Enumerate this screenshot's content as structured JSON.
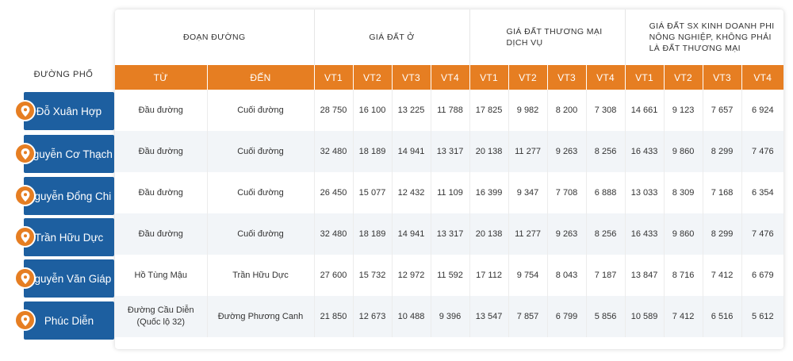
{
  "side_label": "ĐƯỜNG PHỐ",
  "header": {
    "group_doan_duong": "ĐOẠN ĐƯỜNG",
    "group_gia_dat_o": "GIÁ ĐẤT Ở",
    "group_thuong_mai": "GIÁ ĐẤT THƯƠNG MẠI DỊCH VỤ",
    "group_sx_kinh_doanh": "GIÁ ĐẤT SX KINH DOANH PHI NÔNG NGHIỆP, KHÔNG PHẢI LÀ ĐẤT THƯƠNG MẠI",
    "col_tu": "TỪ",
    "col_den": "ĐẾN",
    "vt": [
      "VT1",
      "VT2",
      "VT3",
      "VT4",
      "VT1",
      "VT2",
      "VT3",
      "VT4",
      "VT1",
      "VT2",
      "VT3",
      "VT4"
    ]
  },
  "rows": [
    {
      "street": "Đỗ Xuân Hợp",
      "tu": "Đầu đường",
      "den": "Cuối đường",
      "values": [
        "28 750",
        "16 100",
        "13 225",
        "11 788",
        "17 825",
        "9 982",
        "8 200",
        "7 308",
        "14 661",
        "9 123",
        "7 657",
        "6 924"
      ]
    },
    {
      "street": "Nguyễn Cơ Thạch",
      "tu": "Đầu đường",
      "den": "Cuối đường",
      "values": [
        "32 480",
        "18 189",
        "14 941",
        "13 317",
        "20 138",
        "11 277",
        "9 263",
        "8 256",
        "16 433",
        "9 860",
        "8 299",
        "7 476"
      ]
    },
    {
      "street": "Nguyễn Đổng Chi",
      "tu": "Đầu đường",
      "den": "Cuối đường",
      "values": [
        "26 450",
        "15 077",
        "12 432",
        "11 109",
        "16 399",
        "9 347",
        "7 708",
        "6 888",
        "13 033",
        "8 309",
        "7 168",
        "6 354"
      ]
    },
    {
      "street": "Trần Hữu Dực",
      "tu": "Đầu đường",
      "den": "Cuối đường",
      "values": [
        "32 480",
        "18 189",
        "14 941",
        "13 317",
        "20 138",
        "11 277",
        "9 263",
        "8 256",
        "16 433",
        "9 860",
        "8 299",
        "7 476"
      ]
    },
    {
      "street": "Nguyễn Văn Giáp",
      "tu": "Hồ Tùng Mậu",
      "den": "Trần Hữu Dực",
      "values": [
        "27 600",
        "15 732",
        "12 972",
        "11 592",
        "17 112",
        "9 754",
        "8 043",
        "7 187",
        "13 847",
        "8 716",
        "7 412",
        "6 679"
      ]
    },
    {
      "street": "Phúc Diễn",
      "tu": "Đường Cầu Diễn (Quốc lộ 32)",
      "den": "Đường Phương Canh",
      "values": [
        "21 850",
        "12 673",
        "10 488",
        "9 396",
        "13 547",
        "7 857",
        "6 799",
        "5 856",
        "10 589",
        "7 412",
        "6 516",
        "5 612"
      ]
    }
  ],
  "accent_color": "#e67e22",
  "street_color": "#1d5fa0",
  "icon": "map-pin-icon"
}
